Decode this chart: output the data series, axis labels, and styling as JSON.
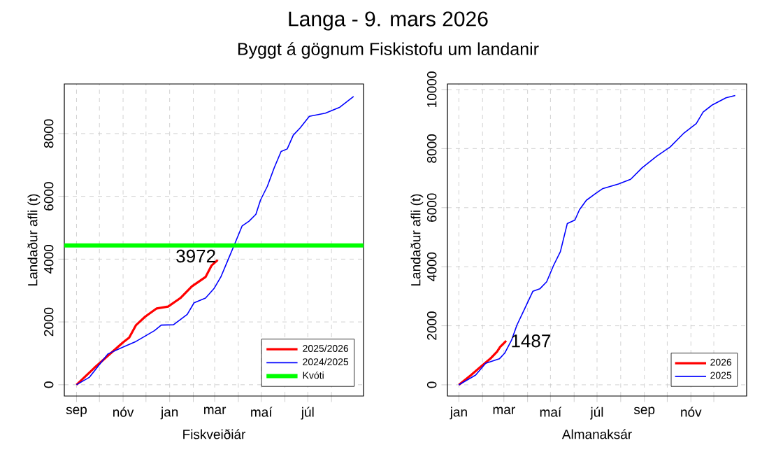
{
  "chart_data": [
    {
      "type": "line",
      "title": "Langa -  9. mars 2026",
      "subtitle": "Byggt á gögnum Fiskistofu um landanir",
      "xlabel": "Fiskveiðiár",
      "ylabel": "Landaður afli (t)",
      "series": [
        {
          "name": "2025/2026",
          "color": "#ff0000",
          "x": [
            "2025-09-01",
            "2025-09-24",
            "2025-10-18",
            "2025-11-01",
            "2025-11-09",
            "2025-11-18",
            "2025-11-30",
            "2025-12-15",
            "2025-12-30",
            "2026-01-15",
            "2026-01-30",
            "2026-02-17",
            "2026-02-25",
            "2026-03-05"
          ],
          "values": [
            0,
            530,
            1050,
            1350,
            1500,
            1900,
            2170,
            2430,
            2490,
            2760,
            3130,
            3430,
            3800,
            3972
          ]
        },
        {
          "name": "2024/2025",
          "color": "#0000ff",
          "x": [
            "2025-09-01",
            "2025-09-18",
            "2025-10-12",
            "2025-11-01",
            "2025-11-18",
            "2025-12-12",
            "2025-12-21",
            "2026-01-06",
            "2026-01-24",
            "2026-02-02",
            "2026-02-17",
            "2026-02-28",
            "2026-03-09",
            "2026-03-18",
            "2026-03-27",
            "2026-04-06",
            "2026-04-15",
            "2026-04-24",
            "2026-04-30",
            "2026-05-09",
            "2026-05-18",
            "2026-05-27",
            "2026-06-04",
            "2026-06-12",
            "2026-06-21",
            "2026-07-03",
            "2026-07-24",
            "2026-08-12",
            "2026-08-30"
          ],
          "values": [
            0,
            240,
            980,
            1200,
            1380,
            1720,
            1900,
            1910,
            2240,
            2610,
            2760,
            3060,
            3430,
            3950,
            4470,
            5060,
            5210,
            5430,
            5880,
            6320,
            6910,
            7430,
            7510,
            7950,
            8180,
            8550,
            8650,
            8840,
            9180
          ]
        }
      ],
      "ref_lines": [
        {
          "axis": "y",
          "value": 4440,
          "label": "Kvóti",
          "color": "#00ff00"
        }
      ],
      "annotations": [
        {
          "text": "3972",
          "x": "2026-03-05",
          "y": 3972
        }
      ],
      "xlim": [
        "2025-08-16",
        "2026-09-12"
      ],
      "ylim": [
        -360,
        9580
      ],
      "xticks": [
        {
          "value": "2025-09-01",
          "label": "sep"
        },
        {
          "value": "2025-10-01",
          "label": null
        },
        {
          "value": "2025-11-01",
          "label": "nóv"
        },
        {
          "value": "2025-12-01",
          "label": null
        },
        {
          "value": "2026-01-01",
          "label": "jan"
        },
        {
          "value": "2026-02-01",
          "label": null
        },
        {
          "value": "2026-03-01",
          "label": "mar"
        },
        {
          "value": "2026-04-01",
          "label": null
        },
        {
          "value": "2026-05-01",
          "label": "maí"
        },
        {
          "value": "2026-06-01",
          "label": null
        },
        {
          "value": "2026-07-01",
          "label": "júl"
        },
        {
          "value": "2026-08-01",
          "label": null
        }
      ],
      "yticks": [
        0,
        2000,
        4000,
        6000,
        8000
      ],
      "grid": true,
      "legend": "bottom right"
    },
    {
      "type": "line",
      "xlabel": "Almanaksár",
      "ylabel": "Landaður afli (t)",
      "series": [
        {
          "name": "2026",
          "color": "#ff0000",
          "x": [
            "2026-01-01",
            "2026-01-17",
            "2026-01-29",
            "2026-02-11",
            "2026-02-20",
            "2026-02-24",
            "2026-03-04"
          ],
          "values": [
            0,
            330,
            600,
            880,
            1120,
            1280,
            1487
          ]
        },
        {
          "name": "2025",
          "color": "#0000ff",
          "x": [
            "2026-01-01",
            "2026-01-23",
            "2026-02-05",
            "2026-02-23",
            "2026-03-02",
            "2026-03-11",
            "2026-03-18",
            "2026-03-29",
            "2026-04-08",
            "2026-04-17",
            "2026-04-26",
            "2026-05-05",
            "2026-05-14",
            "2026-05-23",
            "2026-06-02",
            "2026-06-08",
            "2026-06-17",
            "2026-06-29",
            "2026-07-08",
            "2026-07-29",
            "2026-08-14",
            "2026-08-29",
            "2026-09-17",
            "2026-10-05",
            "2026-10-23",
            "2026-11-08",
            "2026-11-17",
            "2026-11-29",
            "2026-12-17",
            "2026-12-29"
          ],
          "values": [
            0,
            330,
            730,
            880,
            1070,
            1510,
            2020,
            2620,
            3170,
            3250,
            3490,
            4040,
            4510,
            5460,
            5580,
            5930,
            6250,
            6480,
            6640,
            6800,
            6960,
            7350,
            7740,
            8060,
            8530,
            8850,
            9240,
            9480,
            9720,
            9800
          ]
        }
      ],
      "annotations": [
        {
          "text": "1487",
          "x": "2026-03-04",
          "y": 1487
        }
      ],
      "xlim": [
        "2025-12-17",
        "2027-01-13"
      ],
      "ylim": [
        -380,
        10190
      ],
      "xticks": [
        {
          "value": "2026-01-01",
          "label": "jan"
        },
        {
          "value": "2026-02-01",
          "label": null
        },
        {
          "value": "2026-03-01",
          "label": "mar"
        },
        {
          "value": "2026-04-01",
          "label": null
        },
        {
          "value": "2026-05-01",
          "label": "maí"
        },
        {
          "value": "2026-06-01",
          "label": null
        },
        {
          "value": "2026-07-01",
          "label": "júl"
        },
        {
          "value": "2026-08-01",
          "label": null
        },
        {
          "value": "2026-09-01",
          "label": "sep"
        },
        {
          "value": "2026-10-01",
          "label": null
        },
        {
          "value": "2026-11-01",
          "label": "nóv"
        },
        {
          "value": "2026-12-01",
          "label": null
        }
      ],
      "yticks": [
        0,
        2000,
        4000,
        6000,
        8000,
        10000
      ],
      "grid": true,
      "legend": "bottom right"
    }
  ]
}
